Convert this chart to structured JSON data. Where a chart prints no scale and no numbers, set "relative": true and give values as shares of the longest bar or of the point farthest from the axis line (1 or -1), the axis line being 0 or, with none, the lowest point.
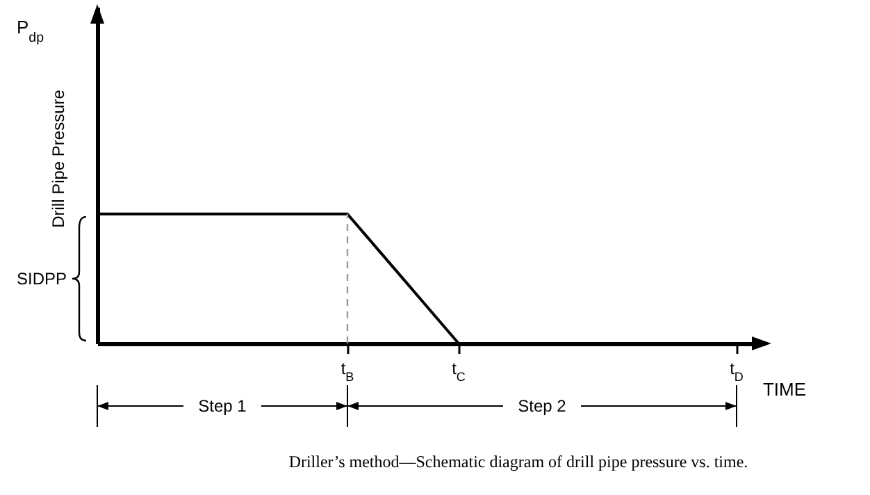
{
  "chart_data": {
    "type": "line",
    "title": "Driller’s method—Schematic diagram of drill pipe pressure vs. time.",
    "xlabel": "TIME",
    "ylabel": "Drill Pipe Pressure",
    "annotations": [
      "P$_{dp}$",
      "SIDPP",
      "Step 1",
      "Step 2"
    ],
    "relative": true,
    "categories": [
      null,
      null,
      null,
      null,
      null,
      null,
      null,
      null,
      null,
      "t$_{B}$",
      null,
      null,
      null,
      "t$_{C}$",
      null,
      null,
      null,
      null,
      null,
      null,
      null,
      null,
      null,
      "t$_{D}$",
      null
    ],
    "series": [
      {
        "color": "#000000",
        "values": [
          1,
          1,
          1,
          1,
          1,
          1,
          1,
          1,
          1,
          1,
          0.75,
          0.5,
          0.25,
          0,
          0,
          0,
          0,
          0,
          0,
          0,
          0,
          0,
          0,
          0,
          0
        ]
      }
    ],
    "ref_lines": [
      {
        "axis": "x",
        "value": "t$_{B}$",
        "line_style": "dashed",
        "color": "#999999"
      }
    ],
    "tick_labels": "x"
  }
}
